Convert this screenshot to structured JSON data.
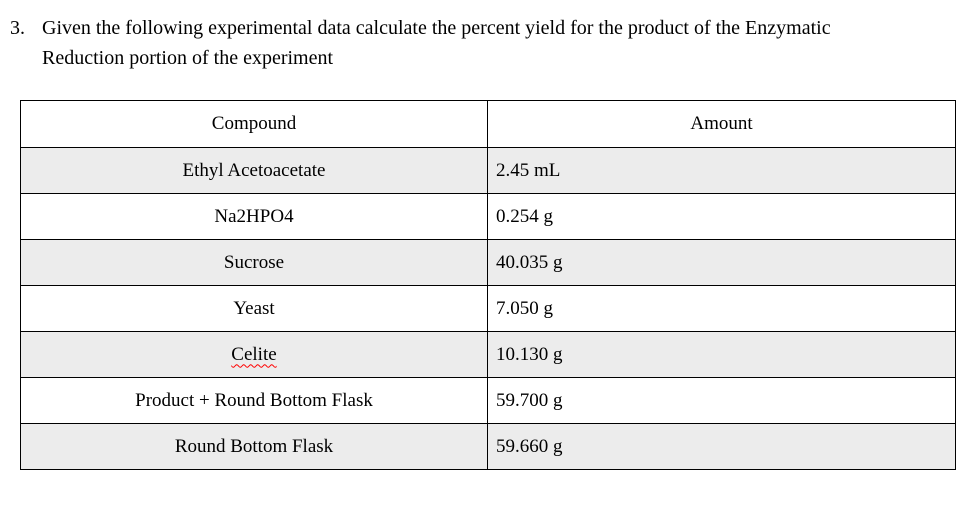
{
  "question": {
    "number": "3.",
    "text": "Given the following experimental data calculate the percent yield for the product of the Enzymatic Reduction portion of the experiment"
  },
  "table": {
    "headers": {
      "compound": "Compound",
      "amount": "Amount"
    },
    "rows": [
      {
        "compound": "Ethyl Acetoacetate",
        "amount": "2.45 mL",
        "shaded": true,
        "spellcheck_underline": false
      },
      {
        "compound": "Na2HPO4",
        "amount": "0.254 g",
        "shaded": false,
        "spellcheck_underline": false
      },
      {
        "compound": "Sucrose",
        "amount": "40.035 g",
        "shaded": true,
        "spellcheck_underline": false
      },
      {
        "compound": "Yeast",
        "amount": "7.050 g",
        "shaded": false,
        "spellcheck_underline": false
      },
      {
        "compound": "Celite",
        "amount": "10.130 g",
        "shaded": true,
        "spellcheck_underline": true
      },
      {
        "compound": "Product + Round Bottom Flask",
        "amount": "59.700 g",
        "shaded": false,
        "spellcheck_underline": false
      },
      {
        "compound": "Round Bottom Flask",
        "amount": "59.660 g",
        "shaded": true,
        "spellcheck_underline": false
      }
    ],
    "colors": {
      "shaded_row": "#ececec",
      "border": "#000000",
      "spellcheck_underline": "#ff0000",
      "text": "#000000",
      "page_background": "#ffffff"
    }
  }
}
